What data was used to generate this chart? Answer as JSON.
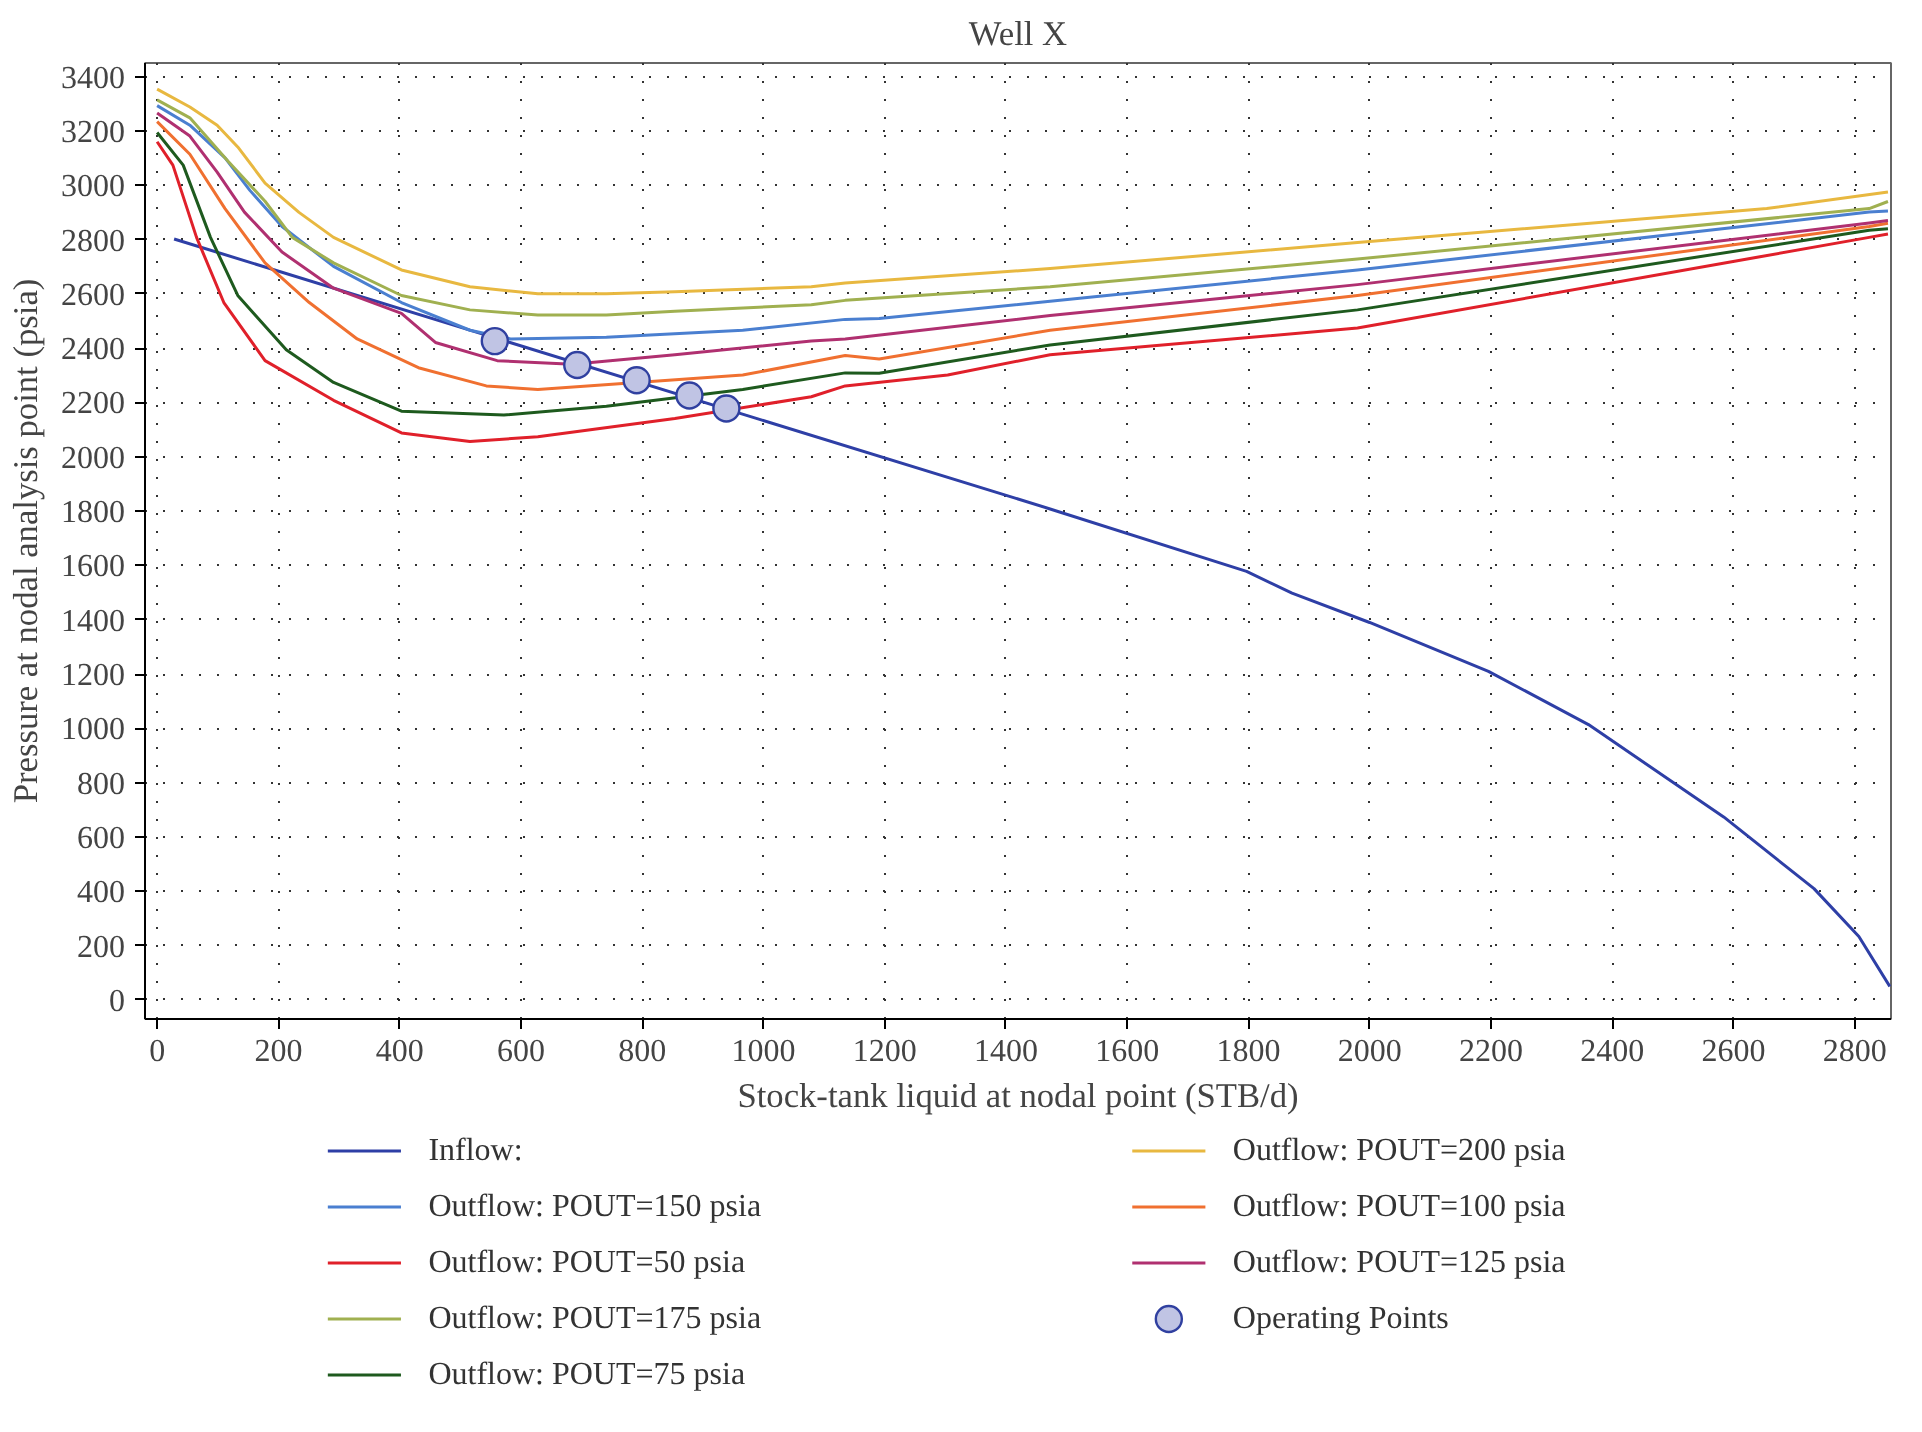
{
  "chart_data": {
    "type": "line",
    "title": "Well X",
    "xlabel": "Stock-tank liquid at nodal point (STB/d)",
    "ylabel": "Pressure at nodal analysis point (psia)",
    "xlim": [
      -20,
      2860
    ],
    "ylim": [
      -70,
      3450
    ],
    "xticks": [
      0,
      200,
      400,
      600,
      800,
      1000,
      1200,
      1400,
      1600,
      1800,
      2000,
      2200,
      2400,
      2600,
      2800
    ],
    "yticks": [
      0,
      200,
      400,
      600,
      800,
      1000,
      1200,
      1400,
      1600,
      1800,
      2000,
      2200,
      2400,
      2600,
      2800,
      3000,
      3200,
      3400
    ],
    "grid": true,
    "legend": "bottom",
    "line_style": "solid",
    "series": [
      {
        "name": "Inflow:",
        "color": "#2e3fa6",
        "x": [
          28,
          1473,
          1797,
          1872,
          2000,
          2196,
          2361,
          2584,
          2733,
          2807,
          2858
        ],
        "values": [
          2802,
          1808,
          1578,
          1498,
          1390,
          1210,
          1014,
          674,
          410,
          234,
          50
        ]
      },
      {
        "name": "Outflow: POUT=150 psia",
        "color": "#4a7fd0",
        "x": [
          0,
          54,
          112,
          153,
          206,
          291,
          403,
          516,
          583,
          741,
          966,
          1135,
          1191,
          1473,
          1980,
          2824,
          2855
        ],
        "values": [
          3293,
          3221,
          3101,
          2981,
          2848,
          2701,
          2568,
          2466,
          2434,
          2440,
          2466,
          2506,
          2509,
          2573,
          2688,
          2901,
          2905
        ]
      },
      {
        "name": "Outflow: POUT=50 psia",
        "color": "#e0202a",
        "x": [
          0,
          26,
          65,
          110,
          178,
          291,
          403,
          516,
          628,
          854,
          1079,
          1135,
          1304,
          1473,
          1980,
          2824,
          2855
        ],
        "values": [
          3160,
          3074,
          2808,
          2568,
          2354,
          2208,
          2088,
          2056,
          2074,
          2141,
          2221,
          2261,
          2301,
          2376,
          2474,
          2808,
          2820
        ]
      },
      {
        "name": "Outflow: POUT=175 psia",
        "color": "#a0b050",
        "x": [
          0,
          54,
          117,
          178,
          223,
          291,
          403,
          516,
          628,
          741,
          854,
          1079,
          1135,
          1473,
          1980,
          2824,
          2855
        ],
        "values": [
          3314,
          3248,
          3088,
          2941,
          2808,
          2714,
          2594,
          2541,
          2522,
          2522,
          2536,
          2560,
          2576,
          2626,
          2728,
          2914,
          2940
        ]
      },
      {
        "name": "Outflow: POUT=75 psia",
        "color": "#1e5a1e",
        "x": [
          0,
          43,
          88,
          133,
          213,
          291,
          403,
          572,
          741,
          966,
          1135,
          1191,
          1473,
          1980,
          2824,
          2855
        ],
        "values": [
          3194,
          3074,
          2808,
          2594,
          2394,
          2274,
          2168,
          2154,
          2186,
          2248,
          2309,
          2308,
          2412,
          2541,
          2834,
          2840
        ]
      },
      {
        "name": "Outflow: POUT=200 psia",
        "color": "#e8b840",
        "x": [
          0,
          54,
          99,
          133,
          178,
          234,
          291,
          403,
          516,
          628,
          741,
          854,
          1079,
          1135,
          1473,
          1980,
          2655,
          2855
        ],
        "values": [
          3354,
          3288,
          3221,
          3141,
          3008,
          2900,
          2808,
          2688,
          2626,
          2600,
          2600,
          2608,
          2626,
          2640,
          2693,
          2789,
          2914,
          2975
        ]
      },
      {
        "name": "Outflow: POUT=100 psia",
        "color": "#f07030",
        "x": [
          0,
          54,
          112,
          178,
          251,
          330,
          431,
          543,
          628,
          966,
          1135,
          1191,
          1473,
          1980,
          2824,
          2855
        ],
        "values": [
          3234,
          3114,
          2914,
          2714,
          2568,
          2434,
          2328,
          2261,
          2248,
          2301,
          2373,
          2360,
          2466,
          2594,
          2848,
          2860
        ]
      },
      {
        "name": "Outflow: POUT=125 psia",
        "color": "#b03070",
        "x": [
          0,
          54,
          99,
          144,
          206,
          291,
          403,
          459,
          561,
          685,
          854,
          1079,
          1135,
          1473,
          1980,
          2824,
          2855
        ],
        "values": [
          3266,
          3181,
          3048,
          2901,
          2754,
          2621,
          2528,
          2421,
          2354,
          2341,
          2376,
          2426,
          2434,
          2520,
          2634,
          2861,
          2870
        ]
      },
      {
        "name": "Operating Points",
        "type": "scatter",
        "marker": "circle",
        "color": "#c0c4e4",
        "x": [
          557,
          693,
          791,
          878,
          939
        ],
        "values": [
          2426,
          2338,
          2282,
          2226,
          2178
        ]
      }
    ]
  }
}
